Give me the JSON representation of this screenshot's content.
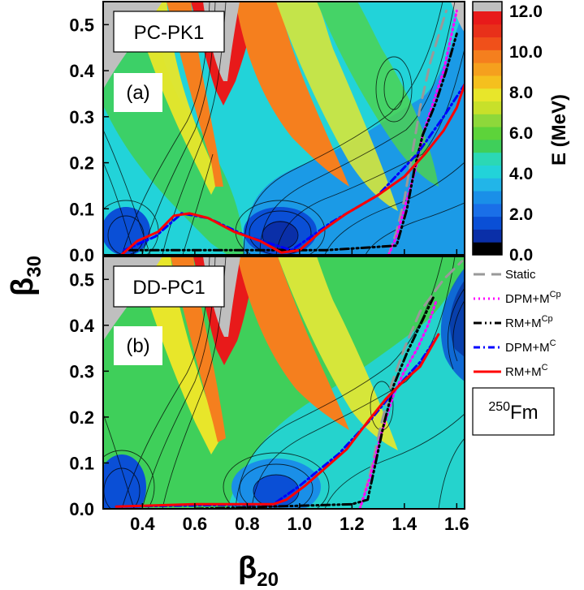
{
  "chart_data": [
    {
      "type": "heatmap",
      "panel_label": "(a)",
      "model_label": "PC-PK1",
      "x_range": [
        0.25,
        1.63
      ],
      "y_range": [
        0.0,
        0.55
      ],
      "series": [
        {
          "name": "Static",
          "points": [
            [
              1.34,
              0.0
            ],
            [
              1.37,
              0.05
            ],
            [
              1.4,
              0.12
            ],
            [
              1.43,
              0.22
            ],
            [
              1.46,
              0.32
            ],
            [
              1.5,
              0.42
            ],
            [
              1.56,
              0.53
            ]
          ]
        },
        {
          "name": "DPM+M^Cp",
          "points": [
            [
              1.34,
              0.0
            ],
            [
              1.37,
              0.04
            ],
            [
              1.4,
              0.1
            ],
            [
              1.44,
              0.18
            ],
            [
              1.47,
              0.26
            ],
            [
              1.51,
              0.33
            ],
            [
              1.55,
              0.4
            ],
            [
              1.6,
              0.53
            ]
          ]
        },
        {
          "name": "RM+M^Cp",
          "points": [
            [
              0.35,
              0.01
            ],
            [
              0.8,
              0.01
            ],
            [
              1.1,
              0.01
            ],
            [
              1.37,
              0.02
            ],
            [
              1.41,
              0.1
            ],
            [
              1.44,
              0.19
            ],
            [
              1.47,
              0.26
            ],
            [
              1.52,
              0.33
            ],
            [
              1.56,
              0.4
            ],
            [
              1.6,
              0.48
            ]
          ]
        },
        {
          "name": "DPM+M^C",
          "points": [
            [
              0.33,
              0.01
            ],
            [
              0.45,
              0.04
            ],
            [
              0.55,
              0.09
            ],
            [
              0.65,
              0.08
            ],
            [
              0.8,
              0.04
            ],
            [
              0.97,
              0.01
            ],
            [
              1.12,
              0.07
            ],
            [
              1.3,
              0.13
            ],
            [
              1.45,
              0.22
            ],
            [
              1.55,
              0.3
            ],
            [
              1.63,
              0.37
            ]
          ]
        },
        {
          "name": "RM+M^C",
          "points": [
            [
              0.32,
              0.0
            ],
            [
              0.38,
              0.03
            ],
            [
              0.46,
              0.05
            ],
            [
              0.52,
              0.085
            ],
            [
              0.58,
              0.09
            ],
            [
              0.65,
              0.08
            ],
            [
              0.75,
              0.05
            ],
            [
              0.85,
              0.03
            ],
            [
              0.93,
              0.005
            ],
            [
              1.0,
              0.01
            ],
            [
              1.08,
              0.05
            ],
            [
              1.18,
              0.09
            ],
            [
              1.3,
              0.13
            ],
            [
              1.4,
              0.17
            ],
            [
              1.48,
              0.22
            ],
            [
              1.55,
              0.27
            ],
            [
              1.6,
              0.32
            ],
            [
              1.63,
              0.37
            ]
          ]
        }
      ]
    },
    {
      "type": "heatmap",
      "panel_label": "(b)",
      "model_label": "DD-PC1",
      "x_range": [
        0.25,
        1.63
      ],
      "y_range": [
        0.0,
        0.55
      ],
      "series": [
        {
          "name": "Static",
          "points": [
            [
              1.23,
              0.0
            ],
            [
              1.27,
              0.08
            ],
            [
              1.31,
              0.18
            ],
            [
              1.35,
              0.27
            ],
            [
              1.4,
              0.35
            ],
            [
              1.46,
              0.43
            ],
            [
              1.55,
              0.5
            ],
            [
              1.62,
              0.54
            ]
          ]
        },
        {
          "name": "DPM+M^Cp",
          "points": [
            [
              1.23,
              0.0
            ],
            [
              1.27,
              0.07
            ],
            [
              1.31,
              0.16
            ],
            [
              1.36,
              0.25
            ],
            [
              1.4,
              0.3
            ],
            [
              1.45,
              0.35
            ],
            [
              1.49,
              0.4
            ],
            [
              1.52,
              0.45
            ]
          ]
        },
        {
          "name": "RM+M^Cp",
          "points": [
            [
              0.6,
              0.0
            ],
            [
              1.2,
              0.01
            ],
            [
              1.26,
              0.02
            ],
            [
              1.29,
              0.1
            ],
            [
              1.32,
              0.18
            ],
            [
              1.36,
              0.27
            ],
            [
              1.41,
              0.34
            ],
            [
              1.46,
              0.4
            ],
            [
              1.51,
              0.46
            ]
          ]
        },
        {
          "name": "DPM+M^C",
          "points": [
            [
              0.3,
              0.005
            ],
            [
              0.9,
              0.01
            ],
            [
              1.0,
              0.05
            ],
            [
              1.15,
              0.12
            ],
            [
              1.28,
              0.2
            ],
            [
              1.38,
              0.27
            ],
            [
              1.46,
              0.32
            ],
            [
              1.53,
              0.38
            ]
          ]
        },
        {
          "name": "RM+M^C",
          "points": [
            [
              0.3,
              0.005
            ],
            [
              0.6,
              0.01
            ],
            [
              0.9,
              0.01
            ],
            [
              0.95,
              0.02
            ],
            [
              1.02,
              0.05
            ],
            [
              1.1,
              0.09
            ],
            [
              1.18,
              0.13
            ],
            [
              1.26,
              0.19
            ],
            [
              1.33,
              0.24
            ],
            [
              1.4,
              0.28
            ],
            [
              1.46,
              0.31
            ],
            [
              1.5,
              0.35
            ],
            [
              1.53,
              0.38
            ]
          ]
        }
      ]
    }
  ],
  "axes": {
    "x_ticks": [
      "0.4",
      "0.6",
      "0.8",
      "1.0",
      "1.2",
      "1.4",
      "1.6"
    ],
    "y_ticks": [
      "0.0",
      "0.1",
      "0.2",
      "0.3",
      "0.4",
      "0.5"
    ],
    "x_title_main": "β",
    "x_title_sub": "20",
    "y_title_main": "β",
    "y_title_sub": "30"
  },
  "colorbar": {
    "ticks": [
      "12.0",
      "10.0",
      "8.0",
      "6.0",
      "4.0",
      "2.0",
      "0.0"
    ],
    "label": "E (MeV)",
    "range": [
      0,
      12
    ]
  },
  "legend": {
    "items": [
      {
        "label_main": "Static",
        "label_sup": "",
        "color": "#999999",
        "dash": "14,8"
      },
      {
        "label_main": "DPM+M",
        "label_sup": "Cp",
        "color": "#ff00ff",
        "dash": "2,4"
      },
      {
        "label_main": "RM+M",
        "label_sup": "Cp",
        "color": "#000000",
        "dash": "10,4,2,4,2,4"
      },
      {
        "label_main": "DPM+M",
        "label_sup": "C",
        "color": "#0000ff",
        "dash": "8,4,2,4"
      },
      {
        "label_main": "RM+M",
        "label_sup": "C",
        "color": "#ff0000",
        "dash": ""
      }
    ]
  },
  "nucleus": {
    "mass": "250",
    "symbol": "Fm"
  }
}
